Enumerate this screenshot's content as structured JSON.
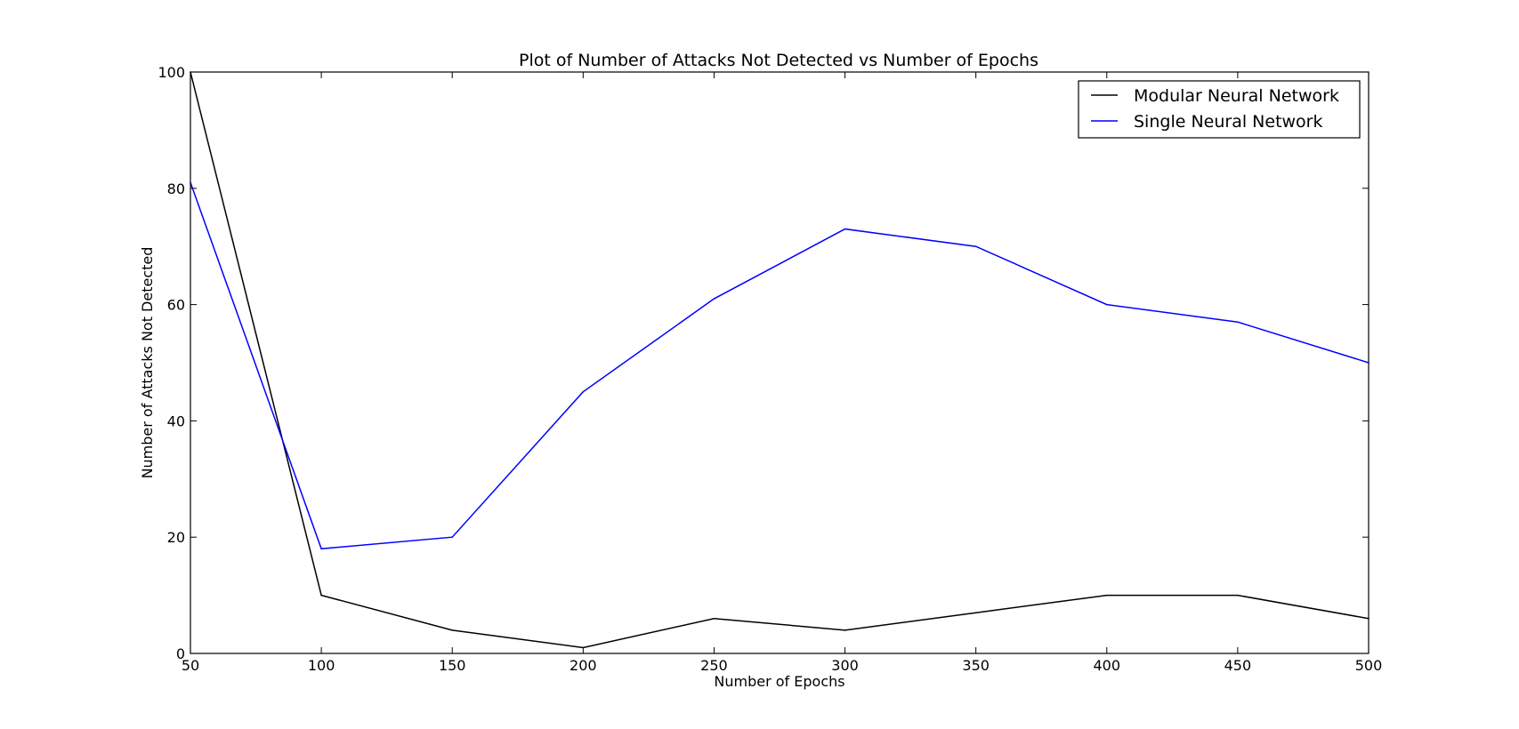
{
  "chart_data": {
    "type": "line",
    "title": "Plot of Number of Attacks Not Detected vs Number of Epochs",
    "xlabel": "Number of Epochs",
    "ylabel": "Number of Attacks Not Detected",
    "xlim": [
      50,
      500
    ],
    "ylim": [
      0,
      100
    ],
    "xticks": [
      50,
      100,
      150,
      200,
      250,
      300,
      350,
      400,
      450,
      500
    ],
    "yticks": [
      0,
      20,
      40,
      60,
      80,
      100
    ],
    "grid": false,
    "legend_position": "top-right",
    "x": [
      50,
      100,
      150,
      200,
      250,
      300,
      350,
      400,
      450,
      500
    ],
    "series": [
      {
        "name": "Modular Neural Network",
        "color": "#000000",
        "values": [
          100,
          10,
          4,
          1,
          6,
          4,
          7,
          10,
          10,
          6
        ]
      },
      {
        "name": "Single Neural Network",
        "color": "#0000ff",
        "values": [
          81,
          18,
          20,
          45,
          61,
          73,
          70,
          60,
          57,
          50
        ]
      }
    ]
  }
}
